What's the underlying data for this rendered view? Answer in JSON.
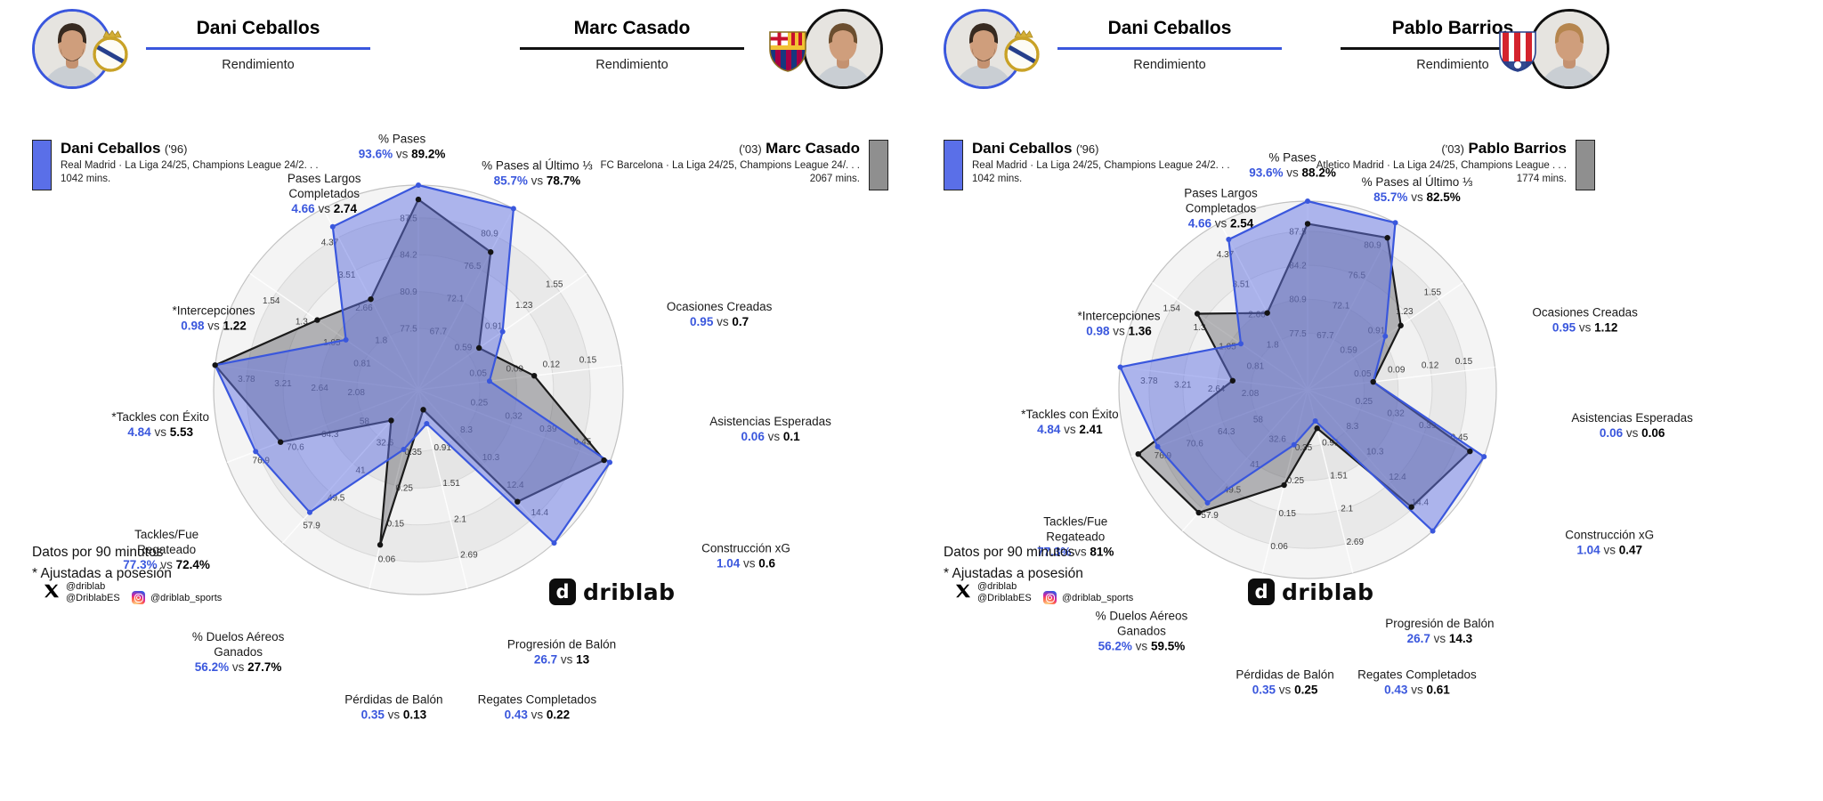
{
  "brand": {
    "logo_text": "driblab",
    "logo_letter": "d"
  },
  "footer": {
    "note1": "Datos por 90 minutos",
    "note2": "* Ajustadas a posesión",
    "x_handle1": "@driblab",
    "x_handle2": "@DriblabES",
    "ig_handle": "@driblab_sports"
  },
  "panels": [
    {
      "header": {
        "left": {
          "name": "Dani Ceballos",
          "subtitle": "Rendimiento"
        },
        "right": {
          "name": "Marc Casado",
          "subtitle": "Rendimiento"
        }
      },
      "legend_left": {
        "name": "Dani Ceballos",
        "birth": "('96)",
        "club_line": "Real Madrid · La Liga 24/25, Champions League 24/2. . .",
        "mins": "1042 mins."
      },
      "legend_right": {
        "birth": "('03)",
        "name": "Marc Casado",
        "club_line": "FC Barcelona · La Liga 24/25, Champions League 24/. . .",
        "mins": "2067 mins."
      }
    },
    {
      "header": {
        "left": {
          "name": "Dani Ceballos",
          "subtitle": "Rendimiento"
        },
        "right": {
          "name": "Pablo Barrios",
          "subtitle": "Rendimiento"
        }
      },
      "legend_left": {
        "name": "Dani Ceballos",
        "birth": "('96)",
        "club_line": "Real Madrid · La Liga 24/25, Champions League 24/2. . .",
        "mins": "1042 mins."
      },
      "legend_right": {
        "birth": "('03)",
        "name": "Pablo Barrios",
        "club_line": "Atletico Madrid · La Liga 24/25, Champions League . . .",
        "mins": "1774 mins."
      }
    }
  ],
  "chart_data": [
    {
      "type": "radar",
      "players": [
        "Dani Ceballos",
        "Marc Casado"
      ],
      "colors": {
        "p1": "#3a57dd",
        "p2": "#1b1b1b"
      },
      "axes": [
        {
          "label": [
            "% Pases"
          ],
          "p1": "93.6%",
          "p2": "89.2%",
          "ticks": [
            "77.5",
            "80.9",
            "84.2",
            "87.5"
          ],
          "r1": 1.0,
          "r2": 0.93
        },
        {
          "label": [
            "% Pases al Último ⅓"
          ],
          "p1": "85.7%",
          "p2": "78.7%",
          "ticks": [
            "67.7",
            "72.1",
            "76.5",
            "80.9"
          ],
          "r1": 1.0,
          "r2": 0.76
        },
        {
          "label": [
            "Ocasiones Creadas"
          ],
          "p1": "0.95",
          "p2": "0.7",
          "ticks": [
            "0.59",
            "0.91",
            "1.23",
            "1.55"
          ],
          "r1": 0.5,
          "r2": 0.36
        },
        {
          "label": [
            "Asistencias Esperadas"
          ],
          "p1": "0.06",
          "p2": "0.1",
          "ticks": [
            "0.05",
            "0.09",
            "0.12",
            "0.15"
          ],
          "r1": 0.35,
          "r2": 0.57
        },
        {
          "label": [
            "Construcción xG"
          ],
          "p1": "1.04",
          "p2": "0.6",
          "ticks": [
            "0.25",
            "0.32",
            "0.39",
            "0.45"
          ],
          "r1": 1.0,
          "r2": 0.97
        },
        {
          "label": [
            "Progresión de Balón"
          ],
          "p1": "26.7",
          "p2": "13",
          "ticks": [
            "8.3",
            "10.3",
            "12.4",
            "14.4"
          ],
          "r1": 1.0,
          "r2": 0.73
        },
        {
          "label": [
            "Regates Completados"
          ],
          "p1": "0.43",
          "p2": "0.22",
          "ticks": [
            "0.91",
            "1.51",
            "2.1",
            "2.69"
          ],
          "r1": 0.17,
          "r2": 0.1
        },
        {
          "label": [
            "Pérdidas de Balón"
          ],
          "p1": "0.35",
          "p2": "0.13",
          "ticks": [
            "0.35",
            "0.25",
            "0.15",
            "0.06"
          ],
          "r1": 0.3,
          "r2": 0.78
        },
        {
          "label": [
            "% Duelos Aéreos",
            "Ganados"
          ],
          "p1": "56.2%",
          "p2": "27.7%",
          "ticks": [
            "32.6",
            "41",
            "49.5",
            "57.9"
          ],
          "r1": 0.8,
          "r2": 0.2
        },
        {
          "label": [
            "Tackles/Fue",
            "Regateado"
          ],
          "p1": "77.3%",
          "p2": "72.4%",
          "ticks": [
            "58",
            "64.3",
            "70.6",
            "76.9"
          ],
          "r1": 0.85,
          "r2": 0.72
        },
        {
          "label": [
            "*Tackles con Éxito"
          ],
          "p1": "4.84",
          "p2": "5.53",
          "ticks": [
            "2.08",
            "2.64",
            "3.21",
            "3.78"
          ],
          "r1": 1.0,
          "r2": 1.0
        },
        {
          "label": [
            "*Intercepciones"
          ],
          "p1": "0.98",
          "p2": "1.22",
          "ticks": [
            "0.81",
            "1.05",
            "1.3",
            "1.54"
          ],
          "r1": 0.43,
          "r2": 0.6
        },
        {
          "label": [
            "Pases Largos",
            "Completados"
          ],
          "p1": "4.66",
          "p2": "2.74",
          "ticks": [
            "1.8",
            "2.66",
            "3.51",
            "4.37"
          ],
          "r1": 0.9,
          "r2": 0.5
        }
      ]
    },
    {
      "type": "radar",
      "players": [
        "Dani Ceballos",
        "Pablo Barrios"
      ],
      "colors": {
        "p1": "#3a57dd",
        "p2": "#1b1b1b"
      },
      "axes": [
        {
          "label": [
            "% Pases"
          ],
          "p1": "93.6%",
          "p2": "88.2%",
          "ticks": [
            "77.5",
            "80.9",
            "84.2",
            "87.5"
          ],
          "r1": 1.0,
          "r2": 0.88
        },
        {
          "label": [
            "% Pases al Último ⅓"
          ],
          "p1": "85.7%",
          "p2": "82.5%",
          "ticks": [
            "67.7",
            "72.1",
            "76.5",
            "80.9"
          ],
          "r1": 1.0,
          "r2": 0.91
        },
        {
          "label": [
            "Ocasiones Creadas"
          ],
          "p1": "0.95",
          "p2": "1.12",
          "ticks": [
            "0.59",
            "0.91",
            "1.23",
            "1.55"
          ],
          "r1": 0.5,
          "r2": 0.6
        },
        {
          "label": [
            "Asistencias Esperadas"
          ],
          "p1": "0.06",
          "p2": "0.06",
          "ticks": [
            "0.05",
            "0.09",
            "0.12",
            "0.15"
          ],
          "r1": 0.35,
          "r2": 0.35
        },
        {
          "label": [
            "Construcción xG"
          ],
          "p1": "1.04",
          "p2": "0.47",
          "ticks": [
            "0.25",
            "0.32",
            "0.39",
            "0.45"
          ],
          "r1": 1.0,
          "r2": 0.92
        },
        {
          "label": [
            "Progresión de Balón"
          ],
          "p1": "26.7",
          "p2": "14.3",
          "ticks": [
            "8.3",
            "10.3",
            "12.4",
            "14.4"
          ],
          "r1": 1.0,
          "r2": 0.83
        },
        {
          "label": [
            "Regates Completados"
          ],
          "p1": "0.43",
          "p2": "0.61",
          "ticks": [
            "0.91",
            "1.51",
            "2.1",
            "2.69"
          ],
          "r1": 0.17,
          "r2": 0.21
        },
        {
          "label": [
            "Pérdidas de Balón"
          ],
          "p1": "0.35",
          "p2": "0.25",
          "ticks": [
            "0.35",
            "0.25",
            "0.15",
            "0.06"
          ],
          "r1": 0.3,
          "r2": 0.52
        },
        {
          "label": [
            "% Duelos Aéreos",
            "Ganados"
          ],
          "p1": "56.2%",
          "p2": "59.5%",
          "ticks": [
            "32.6",
            "41",
            "49.5",
            "57.9"
          ],
          "r1": 0.8,
          "r2": 0.87
        },
        {
          "label": [
            "Tackles/Fue",
            "Regateado"
          ],
          "p1": "77.3%",
          "p2": "81%",
          "ticks": [
            "58",
            "64.3",
            "70.6",
            "76.9"
          ],
          "r1": 0.85,
          "r2": 0.96
        },
        {
          "label": [
            "*Tackles con Éxito"
          ],
          "p1": "4.84",
          "p2": "2.41",
          "ticks": [
            "2.08",
            "2.64",
            "3.21",
            "3.78"
          ],
          "r1": 1.0,
          "r2": 0.4
        },
        {
          "label": [
            "*Intercepciones"
          ],
          "p1": "0.98",
          "p2": "1.36",
          "ticks": [
            "0.81",
            "1.05",
            "1.3",
            "1.54"
          ],
          "r1": 0.43,
          "r2": 0.71
        },
        {
          "label": [
            "Pases Largos",
            "Completados"
          ],
          "p1": "4.66",
          "p2": "2.54",
          "ticks": [
            "1.8",
            "2.66",
            "3.51",
            "4.37"
          ],
          "r1": 0.9,
          "r2": 0.46
        }
      ]
    }
  ]
}
